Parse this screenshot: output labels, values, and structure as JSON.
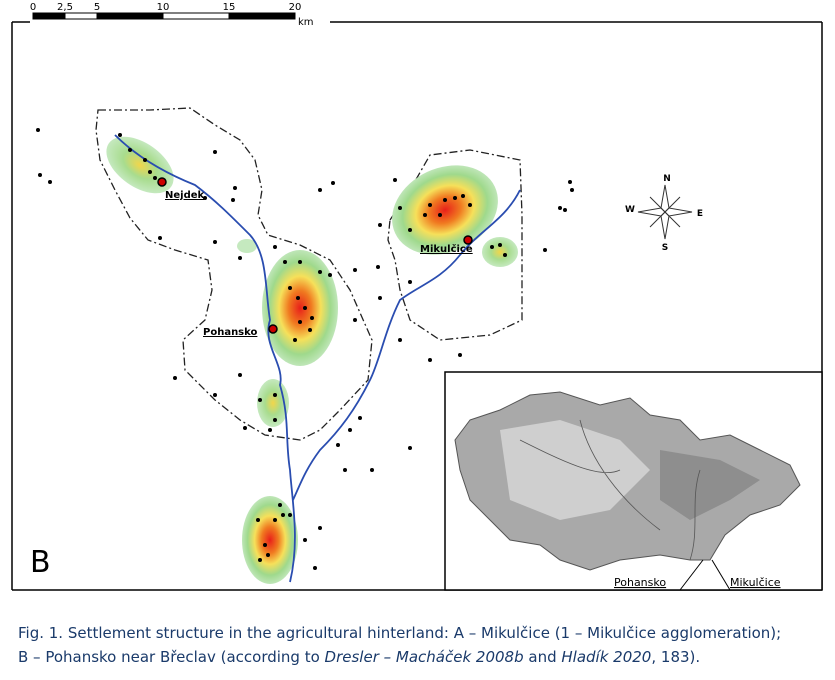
{
  "scale_bar": {
    "labels": [
      "0",
      "2,5",
      "5",
      "10",
      "15",
      "20"
    ],
    "unit": "km"
  },
  "panel_label": "B",
  "places": {
    "nejdek": "Nejdek",
    "mikulcice": "Mikulčice",
    "pohansko": "Pohansko"
  },
  "compass": {
    "north": "N",
    "east": "E",
    "south": "S",
    "west": "W"
  },
  "inset": {
    "labels": [
      "Pohansko",
      "Mikulčice"
    ]
  },
  "caption": {
    "lines": [
      {
        "parts": [
          {
            "text": "Fig. 1. Settlement structure in the agricultural hinterland: A – Mikulčice (1 – Mikulčice agglomeration);"
          }
        ]
      },
      {
        "parts": [
          {
            "text": "B – Pohansko near Břeclav (according to "
          },
          {
            "text": "Dresler – Macháček 2008b",
            "italic": true
          },
          {
            "text": " and "
          },
          {
            "text": "Hladík 2020",
            "italic": true
          },
          {
            "text": ", 183)."
          }
        ]
      }
    ]
  }
}
